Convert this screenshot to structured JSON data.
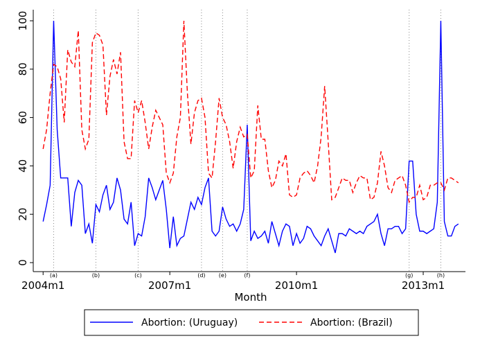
{
  "chart_data": {
    "type": "line",
    "xlabel": "Month",
    "x": [
      528,
      529,
      530,
      531,
      532,
      533,
      534,
      535,
      536,
      537,
      538,
      539,
      540,
      541,
      542,
      543,
      544,
      545,
      546,
      547,
      548,
      549,
      550,
      551,
      552,
      553,
      554,
      555,
      556,
      557,
      558,
      559,
      560,
      561,
      562,
      563,
      564,
      565,
      566,
      567,
      568,
      569,
      570,
      571,
      572,
      573,
      574,
      575,
      576,
      577,
      578,
      579,
      580,
      581,
      582,
      583,
      584,
      585,
      586,
      587,
      588,
      589,
      590,
      591,
      592,
      593,
      594,
      595,
      596,
      597,
      598,
      599,
      600,
      601,
      602,
      603,
      604,
      605,
      606,
      607,
      608,
      609,
      610,
      611,
      612,
      613,
      614,
      615,
      616,
      617,
      618,
      619,
      620,
      621,
      622,
      623,
      624,
      625,
      626,
      627,
      628,
      629,
      630,
      631,
      632,
      633,
      634,
      635,
      636,
      637,
      638,
      639,
      640,
      641,
      642,
      643,
      644,
      645,
      646
    ],
    "xlim": [
      525.2,
      648
    ],
    "xticks": [
      {
        "value": 528,
        "label": "2004m1"
      },
      {
        "value": 564,
        "label": "2007m1"
      },
      {
        "value": 600,
        "label": "2010m1"
      },
      {
        "value": 636,
        "label": "2013m1"
      }
    ],
    "ylim": [
      0,
      100
    ],
    "yticks": [
      0,
      20,
      40,
      60,
      80,
      100
    ],
    "events": [
      {
        "x": 531,
        "label": "(a)"
      },
      {
        "x": 543,
        "label": "(b)"
      },
      {
        "x": 555,
        "label": "(c)"
      },
      {
        "x": 573,
        "label": "(d)"
      },
      {
        "x": 579,
        "label": "(e)"
      },
      {
        "x": 586,
        "label": "(f)"
      },
      {
        "x": 632,
        "label": "(g)"
      },
      {
        "x": 641,
        "label": "(h)"
      }
    ],
    "series": [
      {
        "name": "Abortion: (Uruguay)",
        "color": "#0000ff",
        "dash": "solid",
        "values": [
          17,
          24,
          32,
          100,
          55,
          35,
          35,
          35,
          15,
          29,
          34,
          32,
          12,
          16,
          8,
          24,
          21,
          28,
          32,
          22,
          25,
          35,
          30,
          18,
          16,
          25,
          7,
          12,
          11,
          19,
          35,
          31,
          26,
          30,
          34,
          22,
          6,
          19,
          7,
          10,
          11,
          18,
          25,
          22,
          27,
          24,
          31,
          35,
          13,
          11,
          13,
          23,
          18,
          15,
          16,
          13,
          16,
          22,
          57,
          9,
          13,
          10,
          11,
          13,
          8,
          17,
          12,
          7,
          13,
          16,
          15,
          7,
          12,
          8,
          10,
          15,
          14,
          11,
          9,
          7,
          11,
          14,
          9,
          4,
          12,
          12,
          11,
          14,
          13,
          12,
          13,
          12,
          15,
          16,
          17,
          20,
          12,
          7,
          14,
          14,
          15,
          15,
          12,
          14,
          42,
          42,
          20,
          13,
          13,
          12,
          13,
          14,
          25,
          100,
          17,
          11,
          11,
          15,
          16
        ]
      },
      {
        "name": "Abortion: (Brazil)",
        "color": "#ff0000",
        "dash": "dashed",
        "values": [
          47,
          55,
          70,
          82,
          81,
          76,
          58,
          88,
          83,
          81,
          96,
          55,
          47,
          51,
          91,
          95,
          94,
          90,
          61,
          77,
          84,
          78,
          87,
          50,
          43,
          43,
          67,
          62,
          67,
          58,
          47,
          56,
          63,
          60,
          57,
          37,
          33,
          37,
          52,
          60,
          100,
          70,
          49,
          62,
          67,
          68,
          60,
          37,
          35,
          50,
          68,
          60,
          57,
          50,
          39,
          50,
          56,
          52,
          53,
          35,
          38,
          65,
          51,
          51,
          38,
          31,
          34,
          42,
          40,
          45,
          28,
          27,
          28,
          35,
          37,
          38,
          36,
          33,
          40,
          52,
          73,
          50,
          26,
          27,
          31,
          35,
          34,
          34,
          29,
          33,
          36,
          35,
          35,
          26,
          27,
          33,
          46,
          40,
          31,
          29,
          34,
          35,
          36,
          32,
          25,
          27,
          27,
          32,
          26,
          27,
          32,
          32,
          33,
          33,
          30,
          35,
          35,
          34,
          33
        ]
      }
    ]
  }
}
